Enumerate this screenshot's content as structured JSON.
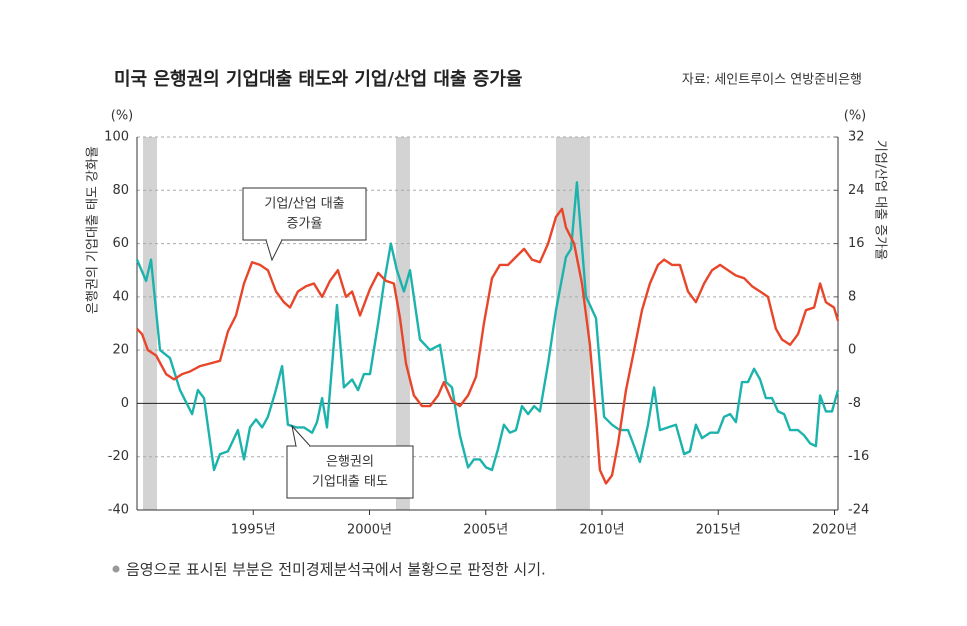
{
  "chart_data": {
    "type": "line",
    "title": "미국 은행권의 기업대출 태도와 기업/산업 대출 증가율",
    "source": "자료: 세인트루이스 연방준비은행",
    "ylabel": "은행권의 기업대출 태도 강화율",
    "y2label": "기업/산업 대출 증가율",
    "yunit": "(%)",
    "y2unit": "(%)",
    "footnote": "음영으로 표시된 부분은 전미경제분석국에서 불황으로 판정한 시기.",
    "xlim": [
      1990,
      2020.15
    ],
    "xticks": [
      {
        "value": 1995,
        "label": "1995년"
      },
      {
        "value": 2000,
        "label": "2000년"
      },
      {
        "value": 2005,
        "label": "2005년"
      },
      {
        "value": 2010,
        "label": "2010년"
      },
      {
        "value": 2015,
        "label": "2015년"
      },
      {
        "value": 2020,
        "label": "2020년"
      }
    ],
    "ylim": [
      -40,
      100
    ],
    "yticks": [
      -40,
      -20,
      0,
      20,
      40,
      60,
      80,
      100
    ],
    "y2lim": [
      -24,
      32
    ],
    "y2ticks": [
      -24,
      -16,
      -8,
      0,
      8,
      16,
      24,
      32
    ],
    "grid": true,
    "shaded_periods": [
      [
        1990.26,
        1990.86
      ],
      [
        2001.14,
        2001.74
      ],
      [
        2008.02,
        2009.48
      ]
    ],
    "series": [
      {
        "color": "#1db3ad",
        "axis": "y",
        "x": [
          1990.0,
          1990.39,
          1990.6,
          1990.99,
          1991.42,
          1991.85,
          1992.37,
          1992.62,
          1992.88,
          1993.31,
          1993.57,
          1993.91,
          1994.34,
          1994.6,
          1994.86,
          1995.12,
          1995.38,
          1995.63,
          1995.94,
          1996.24,
          1996.49,
          1996.84,
          1997.18,
          1997.53,
          1997.74,
          1997.96,
          1998.17,
          1998.6,
          1998.9,
          1999.25,
          1999.51,
          1999.76,
          2000.02,
          2000.37,
          2000.62,
          2000.92,
          2001.18,
          2001.48,
          2001.74,
          2002.17,
          2002.6,
          2003.03,
          2003.29,
          2003.55,
          2003.89,
          2004.24,
          2004.49,
          2004.75,
          2005.01,
          2005.27,
          2005.53,
          2005.78,
          2006.04,
          2006.3,
          2006.56,
          2006.82,
          2007.08,
          2007.33,
          2007.68,
          2008.02,
          2008.45,
          2008.67,
          2008.92,
          2009.31,
          2009.48,
          2009.74,
          2010.09,
          2010.43,
          2010.77,
          2011.12,
          2011.38,
          2011.63,
          2011.98,
          2012.24,
          2012.49,
          2012.84,
          2013.18,
          2013.53,
          2013.78,
          2014.04,
          2014.3,
          2014.65,
          2014.99,
          2015.25,
          2015.51,
          2015.76,
          2016.02,
          2016.28,
          2016.54,
          2016.8,
          2017.05,
          2017.31,
          2017.57,
          2017.83,
          2018.09,
          2018.43,
          2018.69,
          2018.95,
          2019.2,
          2019.38,
          2019.63,
          2019.89,
          2020.15
        ],
        "values": [
          54,
          46,
          54,
          20,
          17,
          5,
          -4,
          5,
          2,
          -25,
          -19,
          -18,
          -10,
          -21,
          -9,
          -6,
          -9,
          -5,
          4,
          14,
          -8,
          -9,
          -9,
          -11,
          -7,
          2,
          -9,
          37,
          6,
          9,
          5,
          11,
          11,
          30,
          45,
          60,
          50,
          42,
          50,
          24,
          20,
          22,
          8,
          6,
          -12,
          -24,
          -21,
          -21,
          -24,
          -25,
          -17,
          -8,
          -11,
          -10,
          -1,
          -4,
          -1,
          -3,
          15,
          35,
          55,
          58,
          83,
          40,
          37,
          32,
          -5,
          -8,
          -10,
          -10,
          -16,
          -22,
          -8,
          6,
          -10,
          -9,
          -8,
          -19,
          -18,
          -8,
          -13,
          -11,
          -11,
          -5,
          -4,
          -7,
          8,
          8,
          13,
          9,
          2,
          2,
          -3,
          -4,
          -10,
          -10,
          -12,
          -15,
          -16,
          3,
          -3,
          -3,
          5
        ]
      },
      {
        "color": "#e8462a",
        "axis": "y2",
        "x": [
          1990.0,
          1990.22,
          1990.47,
          1990.82,
          1991.25,
          1991.59,
          1991.94,
          1992.28,
          1992.71,
          1993.14,
          1993.57,
          1993.91,
          1994.26,
          1994.6,
          1994.95,
          1995.29,
          1995.63,
          1995.98,
          1996.32,
          1996.58,
          1996.92,
          1997.27,
          1997.61,
          1997.96,
          1998.3,
          1998.64,
          1998.99,
          1999.25,
          1999.59,
          2000.02,
          2000.37,
          2000.71,
          2001.05,
          2001.31,
          2001.57,
          2001.91,
          2002.26,
          2002.6,
          2002.95,
          2003.2,
          2003.55,
          2003.89,
          2004.24,
          2004.58,
          2004.92,
          2005.27,
          2005.61,
          2005.96,
          2006.3,
          2006.65,
          2006.99,
          2007.33,
          2007.68,
          2008.02,
          2008.28,
          2008.45,
          2008.8,
          2009.14,
          2009.48,
          2009.74,
          2009.91,
          2010.17,
          2010.43,
          2010.69,
          2011.03,
          2011.38,
          2011.72,
          2012.06,
          2012.41,
          2012.67,
          2013.01,
          2013.35,
          2013.7,
          2014.04,
          2014.39,
          2014.73,
          2015.08,
          2015.42,
          2015.76,
          2016.11,
          2016.45,
          2016.8,
          2017.14,
          2017.48,
          2017.74,
          2018.09,
          2018.43,
          2018.77,
          2019.12,
          2019.38,
          2019.63,
          2019.98,
          2020.15
        ],
        "values": [
          3.2,
          2.4,
          0,
          -0.8,
          -3.6,
          -4.4,
          -3.6,
          -3.2,
          -2.4,
          -2,
          -1.6,
          2.8,
          5.2,
          10,
          13.2,
          12.8,
          12,
          8.8,
          7.2,
          6.4,
          8.8,
          9.6,
          10,
          8,
          10.4,
          12,
          8,
          8.8,
          5.2,
          9.2,
          11.6,
          10.4,
          10,
          4.8,
          -2,
          -6.8,
          -8.4,
          -8.4,
          -6.8,
          -4.8,
          -7.6,
          -8.4,
          -6.8,
          -4,
          4,
          10.8,
          12.8,
          12.8,
          14,
          15.2,
          13.6,
          13.2,
          16,
          20,
          21.2,
          18.4,
          16,
          10,
          0.8,
          -10,
          -18,
          -20,
          -18.8,
          -14,
          -6,
          0,
          6,
          10,
          12.8,
          13.6,
          12.8,
          12.8,
          8.8,
          7.2,
          10,
          12,
          12.8,
          12,
          11.2,
          10.8,
          9.6,
          8.8,
          8,
          3.2,
          1.6,
          0.8,
          2.4,
          6,
          6.4,
          10,
          7.2,
          6.4,
          4.4
        ]
      }
    ],
    "annotations": [
      {
        "lines": [
          "기업/산업 대출",
          "증가율"
        ]
      },
      {
        "lines": [
          "은행권의",
          "기업대출 태도"
        ]
      }
    ]
  }
}
